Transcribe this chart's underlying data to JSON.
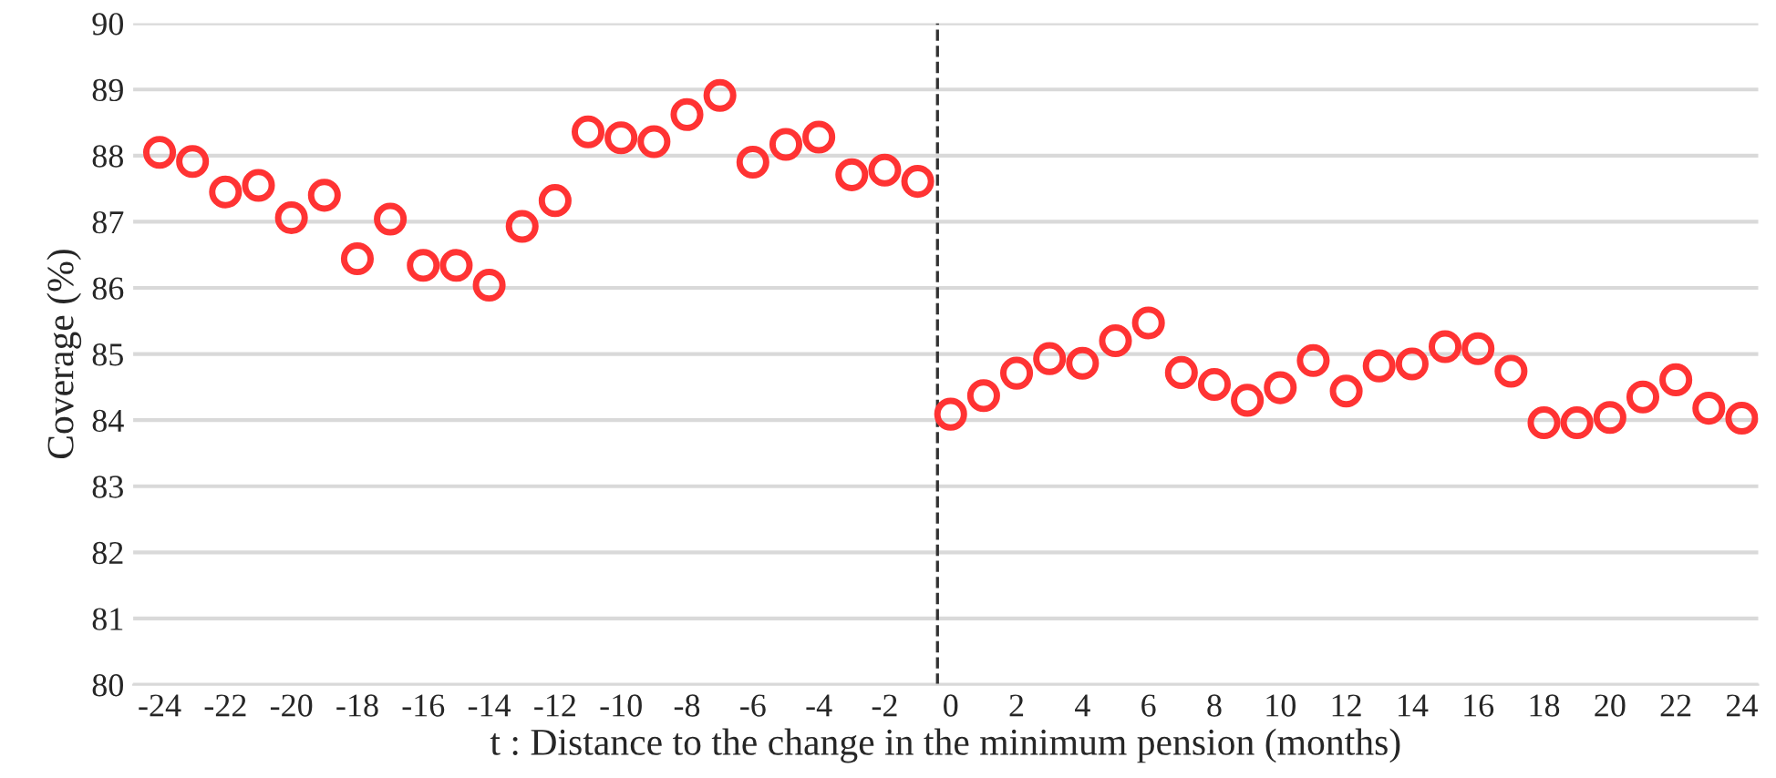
{
  "chart_data": {
    "type": "scatter",
    "xlabel": "t : Distance to the change in the minimum pension (months)",
    "ylabel": "Coverage (%)",
    "x": [
      -24,
      -23,
      -22,
      -21,
      -20,
      -19,
      -18,
      -17,
      -16,
      -15,
      -14,
      -13,
      -12,
      -11,
      -10,
      -9,
      -8,
      -7,
      -6,
      -5,
      -4,
      -3,
      -2,
      -1,
      0,
      1,
      2,
      3,
      4,
      5,
      6,
      7,
      8,
      9,
      10,
      11,
      12,
      13,
      14,
      15,
      16,
      17,
      18,
      19,
      20,
      21,
      22,
      23,
      24
    ],
    "series": [
      {
        "color": "#ff3333",
        "values": [
          88.05,
          87.91,
          87.45,
          87.55,
          87.06,
          87.4,
          86.44,
          87.04,
          86.34,
          86.34,
          86.04,
          86.93,
          87.32,
          88.36,
          88.27,
          88.21,
          88.62,
          88.91,
          87.9,
          88.17,
          88.28,
          87.71,
          87.78,
          87.61,
          84.09,
          84.37,
          84.71,
          84.93,
          84.86,
          85.2,
          85.47,
          84.72,
          84.54,
          84.3,
          84.49,
          84.9,
          84.44,
          84.82,
          84.85,
          85.11,
          85.08,
          84.74,
          83.96,
          83.96,
          84.04,
          84.35,
          84.61,
          84.18,
          84.03
        ]
      }
    ],
    "marker": "circle",
    "xlim": [
      -24.8,
      24.5
    ],
    "ylim": [
      80,
      90
    ],
    "xticks": [
      -24,
      -22,
      -20,
      -18,
      -16,
      -14,
      -12,
      -10,
      -8,
      -6,
      -4,
      -2,
      0,
      2,
      4,
      6,
      8,
      10,
      12,
      14,
      16,
      18,
      20,
      22,
      24
    ],
    "yticks": [
      80,
      81,
      82,
      83,
      84,
      85,
      86,
      87,
      88,
      89,
      90
    ],
    "grid": "y",
    "legend": false,
    "ref_lines": [
      {
        "axis": "x",
        "value": -0.4,
        "color": "#333333",
        "line_style": "dashed"
      }
    ]
  }
}
